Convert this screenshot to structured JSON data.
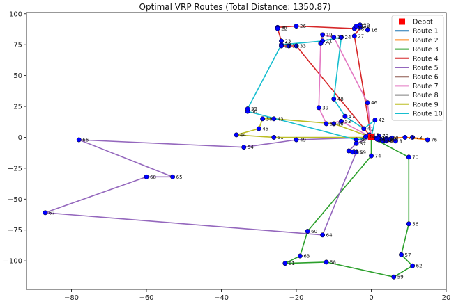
{
  "chart_data": {
    "type": "line",
    "title": "Optimal VRP Routes (Total Distance: 1350.87)",
    "xlabel": "",
    "ylabel": "",
    "xlim": [
      -92,
      20
    ],
    "ylim": [
      -123,
      101
    ],
    "xticks": [
      -80,
      -60,
      -40,
      -20,
      0,
      20
    ],
    "yticks": [
      -100,
      -75,
      -50,
      -25,
      0,
      25,
      50,
      75,
      100
    ],
    "grid": false,
    "legend_position": "top-right",
    "depot": {
      "id": 0,
      "label": "Depot",
      "x": 0,
      "y": 0,
      "color": "#ff0000"
    },
    "nodes": [
      {
        "id": 1,
        "x": 2,
        "y": -1.5
      },
      {
        "id": 2,
        "x": 5,
        "y": -1.5
      },
      {
        "id": 3,
        "x": 6.5,
        "y": -3
      },
      {
        "id": 4,
        "x": 3.5,
        "y": -3
      },
      {
        "id": 5,
        "x": 4,
        "y": -3
      },
      {
        "id": 6,
        "x": 2,
        "y": -2
      },
      {
        "id": 7,
        "x": 2.5,
        "y": -1.5
      },
      {
        "id": 8,
        "x": 5.5,
        "y": -0.5
      },
      {
        "id": 9,
        "x": 4,
        "y": -2
      },
      {
        "id": 10,
        "x": 4,
        "y": -1
      },
      {
        "id": 11,
        "x": 3,
        "y": -2.5
      },
      {
        "id": 12,
        "x": 1,
        "y": -0.5
      },
      {
        "id": 13,
        "x": 1.5,
        "y": -1.5
      },
      {
        "id": 14,
        "x": -1.5,
        "y": 0.5
      },
      {
        "id": 15,
        "x": -0.5,
        "y": 2
      },
      {
        "id": 16,
        "x": -1,
        "y": 87
      },
      {
        "id": 17,
        "x": -10,
        "y": 81
      },
      {
        "id": 18,
        "x": -4.5,
        "y": 88
      },
      {
        "id": 19,
        "x": -13,
        "y": 83
      },
      {
        "id": 20,
        "x": -25,
        "y": 89
      },
      {
        "id": 21,
        "x": -13,
        "y": 78
      },
      {
        "id": 22,
        "x": -25,
        "y": 88
      },
      {
        "id": 23,
        "x": -24,
        "y": 78
      },
      {
        "id": 24,
        "x": -8,
        "y": 81
      },
      {
        "id": 25,
        "x": -13.5,
        "y": 76
      },
      {
        "id": 26,
        "x": -20,
        "y": 90
      },
      {
        "id": 27,
        "x": -4.5,
        "y": 82
      },
      {
        "id": 28,
        "x": -3,
        "y": 89
      },
      {
        "id": 29,
        "x": -3,
        "y": 91
      },
      {
        "id": 30,
        "x": -24,
        "y": 75
      },
      {
        "id": 31,
        "x": -24,
        "y": 74
      },
      {
        "id": 32,
        "x": -4,
        "y": 90
      },
      {
        "id": 33,
        "x": -20,
        "y": 74
      },
      {
        "id": 34,
        "x": -22,
        "y": 74
      },
      {
        "id": 35,
        "x": -5,
        "y": -12
      },
      {
        "id": 36,
        "x": -4,
        "y": -2
      },
      {
        "id": 37,
        "x": -4,
        "y": -5
      },
      {
        "id": 38,
        "x": -29,
        "y": 15
      },
      {
        "id": 39,
        "x": -14,
        "y": 24
      },
      {
        "id": 40,
        "x": -10,
        "y": 11
      },
      {
        "id": 41,
        "x": -2,
        "y": 7
      },
      {
        "id": 42,
        "x": 1,
        "y": 14
      },
      {
        "id": 43,
        "x": -26,
        "y": 15
      },
      {
        "id": 44,
        "x": -36,
        "y": 2
      },
      {
        "id": 45,
        "x": -30,
        "y": 7
      },
      {
        "id": 46,
        "x": -1,
        "y": 28
      },
      {
        "id": 47,
        "x": -7,
        "y": 17
      },
      {
        "id": 48,
        "x": -10,
        "y": 31
      },
      {
        "id": 49,
        "x": -20,
        "y": -2
      },
      {
        "id": 50,
        "x": -33,
        "y": 21
      },
      {
        "id": 51,
        "x": -26,
        "y": 0
      },
      {
        "id": 52,
        "x": -12,
        "y": 11
      },
      {
        "id": 53,
        "x": -8,
        "y": 13
      },
      {
        "id": 54,
        "x": -34,
        "y": -8
      },
      {
        "id": 55,
        "x": -33,
        "y": 23
      },
      {
        "id": 56,
        "x": 10,
        "y": -70
      },
      {
        "id": 57,
        "x": 8,
        "y": -95
      },
      {
        "id": 58,
        "x": -12,
        "y": -101
      },
      {
        "id": 59,
        "x": 6,
        "y": -113
      },
      {
        "id": 60,
        "x": -17,
        "y": -76
      },
      {
        "id": 61,
        "x": -23,
        "y": -102
      },
      {
        "id": 62,
        "x": 11,
        "y": -104
      },
      {
        "id": 63,
        "x": -19,
        "y": -96
      },
      {
        "id": 64,
        "x": -13,
        "y": -79
      },
      {
        "id": 65,
        "x": -53,
        "y": -32
      },
      {
        "id": 66,
        "x": -78,
        "y": -2
      },
      {
        "id": 67,
        "x": -87,
        "y": -61
      },
      {
        "id": 68,
        "x": -60,
        "y": -32
      },
      {
        "id": 69,
        "x": -4,
        "y": -12
      },
      {
        "id": 70,
        "x": 10,
        "y": -16
      },
      {
        "id": 71,
        "x": -6,
        "y": -11
      },
      {
        "id": 72,
        "x": 2,
        "y": 1
      },
      {
        "id": 73,
        "x": 11,
        "y": 0
      },
      {
        "id": 74,
        "x": 0,
        "y": -15
      },
      {
        "id": 75,
        "x": 9,
        "y": 0
      },
      {
        "id": 76,
        "x": 15,
        "y": -2
      }
    ],
    "series": [
      {
        "name": "Route 1",
        "color": "#1f77b4",
        "path": [
          0,
          12,
          13,
          6,
          1,
          0
        ]
      },
      {
        "name": "Route 2",
        "color": "#ff7f0e",
        "path": [
          0,
          9,
          10,
          73,
          76,
          75,
          8,
          2,
          3,
          5,
          4,
          11,
          0
        ]
      },
      {
        "name": "Route 3",
        "color": "#2ca02c",
        "path": [
          0,
          70,
          56,
          57,
          62,
          59,
          58,
          61,
          63,
          60,
          74,
          0
        ]
      },
      {
        "name": "Route 4",
        "color": "#d62728",
        "path": [
          0,
          27,
          28,
          32,
          29,
          18,
          26,
          20,
          22,
          23,
          31,
          34,
          33,
          0
        ]
      },
      {
        "name": "Route 5",
        "color": "#9467bd",
        "path": [
          0,
          49,
          54,
          66,
          65,
          68,
          67,
          64,
          69,
          35,
          71,
          37,
          0
        ]
      },
      {
        "name": "Route 6",
        "color": "#8c564b",
        "path": [
          0,
          7,
          72,
          0
        ]
      },
      {
        "name": "Route 7",
        "color": "#e377c2",
        "path": [
          0,
          46,
          17,
          19,
          25,
          39,
          52,
          53,
          0
        ]
      },
      {
        "name": "Route 8",
        "color": "#7f7f7f",
        "path": [
          0,
          14,
          15,
          0
        ]
      },
      {
        "name": "Route 9",
        "color": "#bcbd22",
        "path": [
          0,
          40,
          43,
          38,
          45,
          44,
          51,
          0
        ]
      },
      {
        "name": "Route 10",
        "color": "#17becf",
        "path": [
          0,
          42,
          41,
          47,
          48,
          24,
          21,
          30,
          55,
          50,
          36,
          0
        ]
      }
    ]
  }
}
